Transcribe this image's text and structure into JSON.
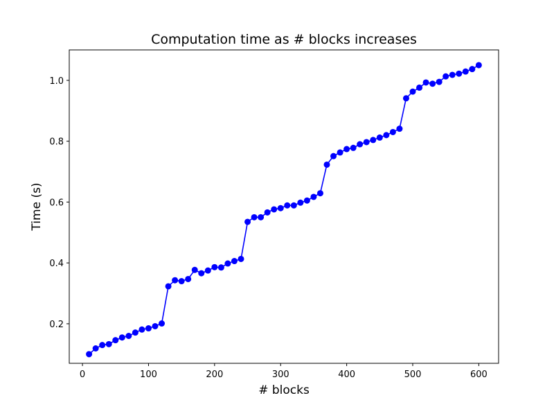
{
  "chart_data": {
    "type": "line",
    "title": "Computation time as # blocks increases",
    "xlabel": "# blocks",
    "ylabel": "Time (s)",
    "xlim": [
      -20,
      630
    ],
    "ylim": [
      0.07,
      1.1
    ],
    "xticks": [
      0,
      100,
      200,
      300,
      400,
      500,
      600
    ],
    "yticks": [
      0.2,
      0.4,
      0.6,
      0.8,
      1.0
    ],
    "xtick_labels": [
      "0",
      "100",
      "200",
      "300",
      "400",
      "500",
      "600"
    ],
    "ytick_labels": [
      "0.2",
      "0.4",
      "0.6",
      "0.8",
      "1.0"
    ],
    "grid": false,
    "series": [
      {
        "color": "#0000ff",
        "marker": "circle",
        "x": [
          10,
          20,
          30,
          40,
          50,
          60,
          70,
          80,
          90,
          100,
          110,
          120,
          130,
          140,
          150,
          160,
          170,
          180,
          190,
          200,
          210,
          220,
          230,
          240,
          250,
          260,
          270,
          280,
          290,
          300,
          310,
          320,
          330,
          340,
          350,
          360,
          370,
          380,
          390,
          400,
          410,
          420,
          430,
          440,
          450,
          460,
          470,
          480,
          490,
          500,
          510,
          520,
          530,
          540,
          550,
          560,
          570,
          580,
          590,
          600
        ],
        "y": [
          0.1,
          0.119,
          0.13,
          0.133,
          0.146,
          0.155,
          0.16,
          0.171,
          0.181,
          0.185,
          0.192,
          0.201,
          0.323,
          0.343,
          0.34,
          0.347,
          0.377,
          0.366,
          0.375,
          0.386,
          0.385,
          0.398,
          0.406,
          0.413,
          0.535,
          0.55,
          0.55,
          0.566,
          0.576,
          0.58,
          0.589,
          0.589,
          0.598,
          0.605,
          0.617,
          0.629,
          0.723,
          0.751,
          0.763,
          0.774,
          0.778,
          0.79,
          0.797,
          0.804,
          0.812,
          0.82,
          0.83,
          0.841,
          0.941,
          0.963,
          0.976,
          0.993,
          0.989,
          0.995,
          1.013,
          1.018,
          1.022,
          1.029,
          1.037,
          1.05
        ]
      }
    ]
  }
}
